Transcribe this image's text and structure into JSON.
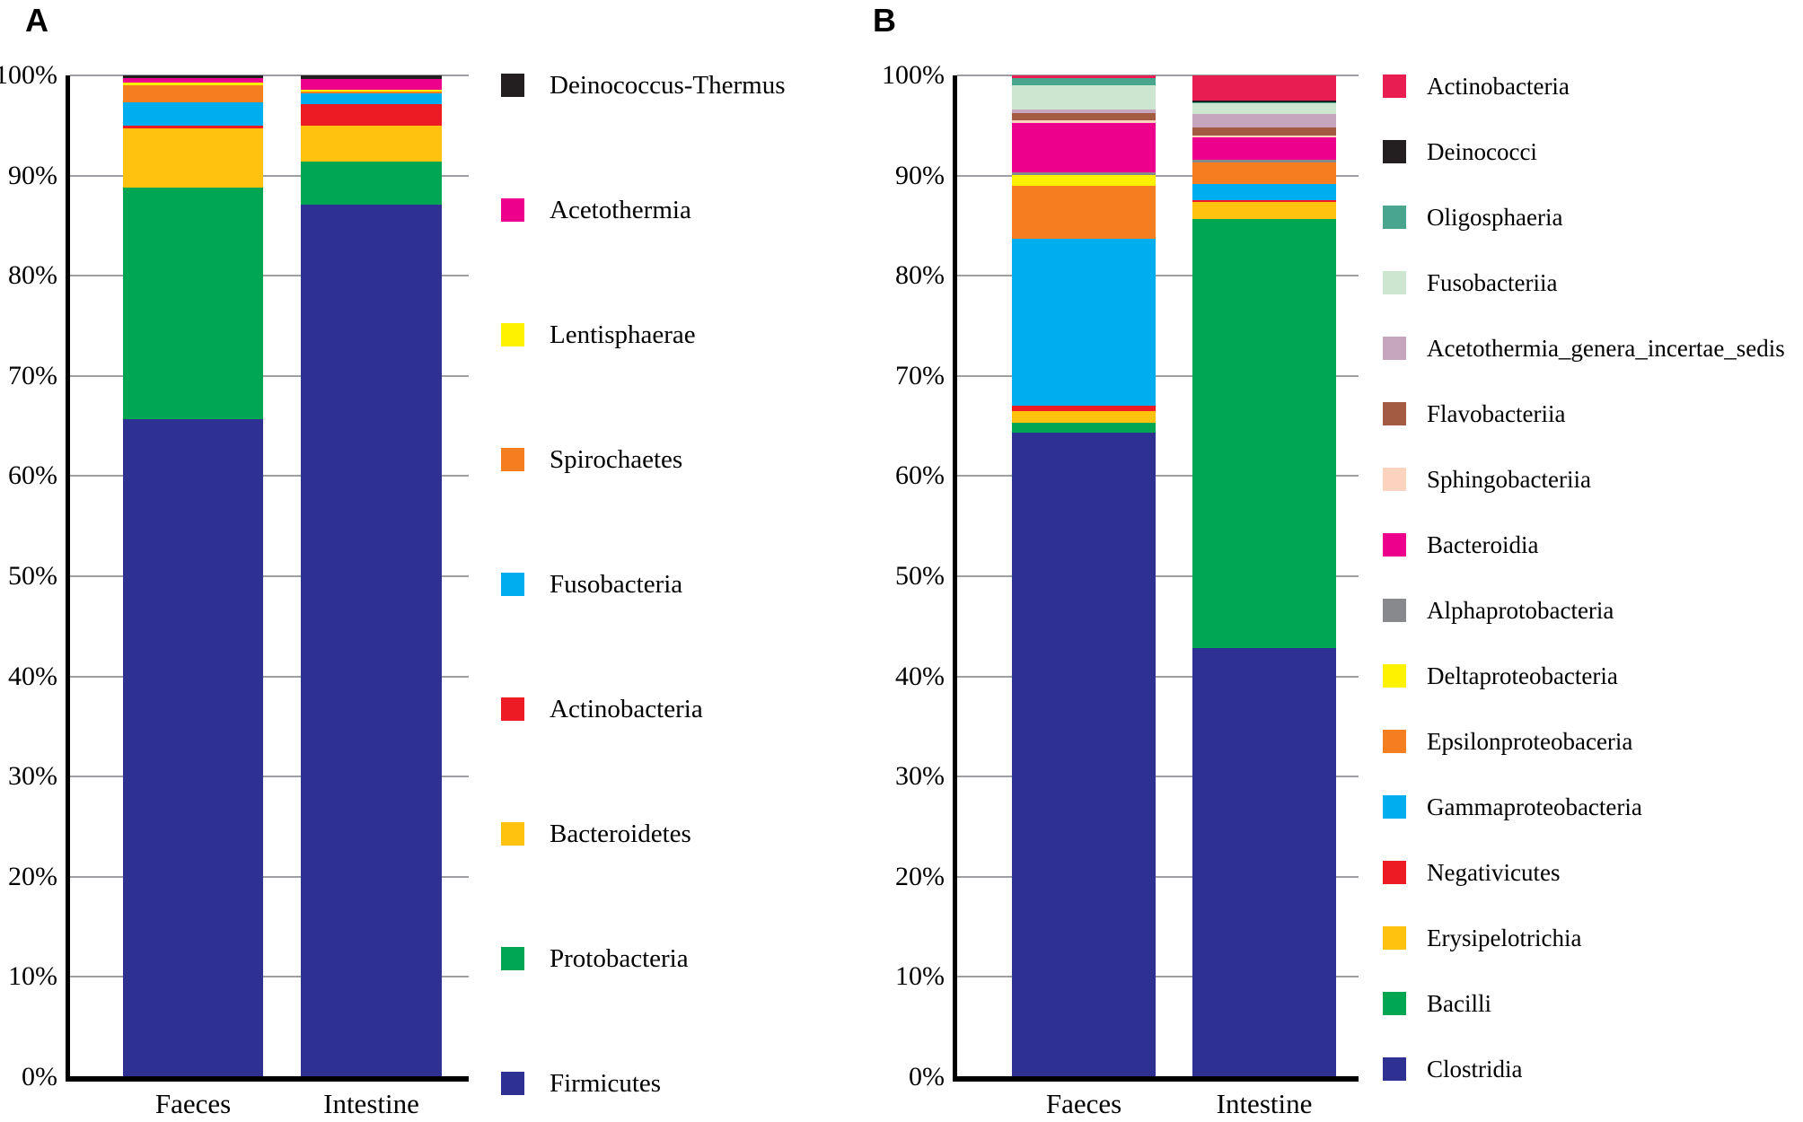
{
  "chart_data": [
    {
      "type": "bar",
      "stacked": true,
      "title": "A",
      "categories": [
        "Faeces",
        "Intestine"
      ],
      "xlabel": "",
      "ylabel": "",
      "ylim": [
        0,
        100
      ],
      "y_ticks": [
        "0%",
        "10%",
        "20%",
        "30%",
        "40%",
        "50%",
        "60%",
        "70%",
        "80%",
        "90%",
        "100%"
      ],
      "grid": true,
      "legend_position": "right",
      "series": [
        {
          "name": "Deinococcus-Thermus",
          "color": "#231F20",
          "values": [
            0.3,
            0.4
          ]
        },
        {
          "name": "Acetothermia",
          "color": "#EC008C",
          "values": [
            0.4,
            1.0
          ]
        },
        {
          "name": "Lentisphaerae",
          "color": "#FFF200",
          "values": [
            0.3,
            0.2
          ]
        },
        {
          "name": "Spirochaetes",
          "color": "#F57E20",
          "values": [
            1.7,
            0.2
          ]
        },
        {
          "name": "Fusobacteria",
          "color": "#00AEEF",
          "values": [
            2.3,
            1.1
          ]
        },
        {
          "name": "Actinobacteria",
          "color": "#ED1C24",
          "values": [
            0.3,
            2.1
          ]
        },
        {
          "name": "Bacteroidetes",
          "color": "#FFC20E",
          "values": [
            5.9,
            3.6
          ]
        },
        {
          "name": "Protobacteria",
          "color": "#00A651",
          "values": [
            23.1,
            4.3
          ]
        },
        {
          "name": "Firmicutes",
          "color": "#2E3192",
          "values": [
            65.7,
            87.1
          ]
        }
      ]
    },
    {
      "type": "bar",
      "stacked": true,
      "title": "B",
      "categories": [
        "Faeces",
        "Intestine"
      ],
      "xlabel": "",
      "ylabel": "",
      "ylim": [
        0,
        100
      ],
      "y_ticks": [
        "0%",
        "10%",
        "20%",
        "30%",
        "40%",
        "50%",
        "60%",
        "70%",
        "80%",
        "90%",
        "100%"
      ],
      "grid": true,
      "legend_position": "right",
      "series": [
        {
          "name": "Actinobacteria",
          "color": "#E81D51",
          "values": [
            0.3,
            2.5
          ]
        },
        {
          "name": "Deinococci",
          "color": "#231F20",
          "values": [
            0.0,
            0.15
          ]
        },
        {
          "name": "Oligosphaeria",
          "color": "#4AA58E",
          "values": [
            0.7,
            0.1
          ]
        },
        {
          "name": "Fusobacteriia",
          "color": "#CDE6D0",
          "values": [
            2.4,
            1.1
          ]
        },
        {
          "name": "Acetothermia_genera_incertae_sedis",
          "color": "#C6A6BF",
          "values": [
            0.35,
            1.35
          ]
        },
        {
          "name": "Flavobacteriia",
          "color": "#A35C41",
          "values": [
            0.75,
            0.8
          ]
        },
        {
          "name": "Sphingobacteriia",
          "color": "#FBD3BE",
          "values": [
            0.25,
            0.2
          ]
        },
        {
          "name": "Bacteroidia",
          "color": "#EC008C",
          "values": [
            4.9,
            2.2
          ]
        },
        {
          "name": "Alphaprotobacteria",
          "color": "#87898C",
          "values": [
            0.3,
            0.3
          ]
        },
        {
          "name": "Deltaproteobacteria",
          "color": "#FFF200",
          "values": [
            1.05,
            0.0
          ]
        },
        {
          "name": "Epsilonproteobaceria",
          "color": "#F57E20",
          "values": [
            5.3,
            2.1
          ]
        },
        {
          "name": "Gammaproteobacteria",
          "color": "#00AEEF",
          "values": [
            16.7,
            1.65
          ]
        },
        {
          "name": "Negativicutes",
          "color": "#ED1C24",
          "values": [
            0.55,
            0.2
          ]
        },
        {
          "name": "Erysipelotrichia",
          "color": "#FFC20E",
          "values": [
            1.1,
            1.7
          ]
        },
        {
          "name": "Bacilli",
          "color": "#00A651",
          "values": [
            1.05,
            42.85
          ]
        },
        {
          "name": "Clostridia",
          "color": "#2E3192",
          "values": [
            64.3,
            42.8
          ]
        }
      ]
    }
  ]
}
